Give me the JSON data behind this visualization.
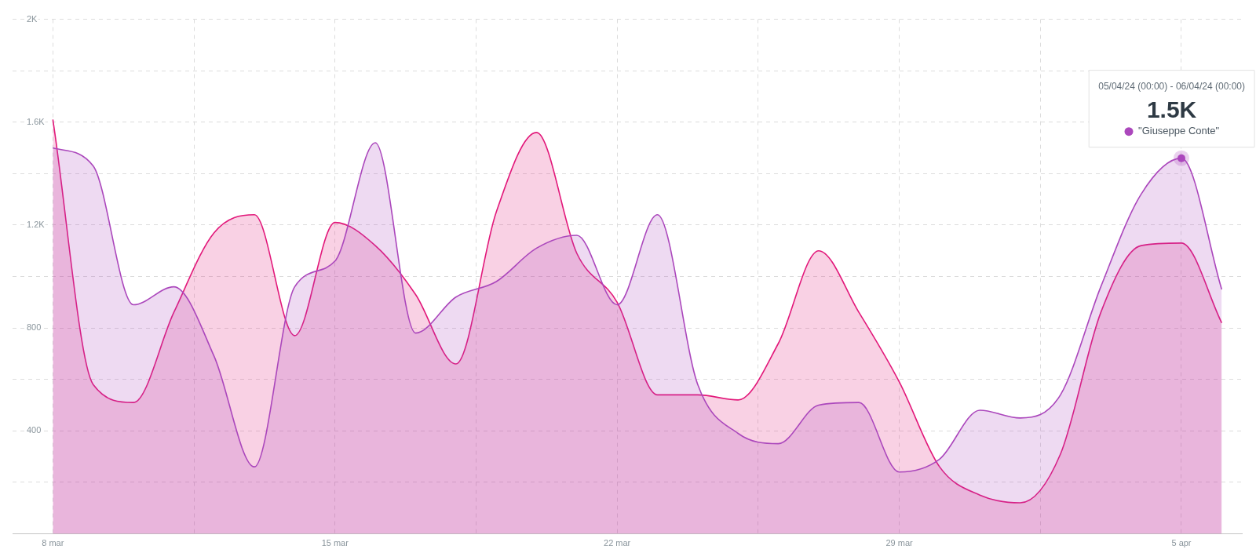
{
  "chart_data": {
    "type": "area",
    "x": [
      "--03-08",
      "--03-09",
      "--03-10",
      "--03-11",
      "--03-12",
      "--03-13",
      "--03-14",
      "--03-15",
      "--03-16",
      "--03-17",
      "--03-18",
      "--03-19",
      "--03-20",
      "--03-21",
      "--03-22",
      "--03-23",
      "--03-24",
      "--03-25",
      "--03-26",
      "--03-27",
      "--03-28",
      "--03-29",
      "--03-30",
      "--03-31",
      "--04-01",
      "--04-02",
      "--04-03",
      "--04-04",
      "--04-05",
      "--04-06"
    ],
    "series": [
      {
        "name": "\"Giuseppe Conte\"",
        "color": "#ab47bc",
        "values": [
          1500,
          1430,
          890,
          960,
          690,
          260,
          960,
          1060,
          1520,
          780,
          920,
          980,
          1110,
          1160,
          890,
          1240,
          580,
          390,
          350,
          500,
          510,
          240,
          290,
          480,
          450,
          540,
          960,
          1320,
          1460,
          950
        ]
      },
      {
        "color": "#e2187a",
        "values": [
          1610,
          580,
          510,
          860,
          1170,
          1240,
          770,
          1210,
          1120,
          930,
          660,
          1250,
          1560,
          1090,
          900,
          540,
          540,
          520,
          740,
          1100,
          860,
          590,
          260,
          150,
          120,
          310,
          860,
          1120,
          1130,
          820
        ]
      }
    ],
    "xlim": [
      "--03-07",
      "--04-06T12:00"
    ],
    "xticks": [
      {
        "value": "--03-08",
        "label": "8 mar"
      },
      {
        "value": "--03-11T12:00",
        "label": null
      },
      {
        "value": "--03-15",
        "label": "15 mar"
      },
      {
        "value": "--03-18T12:00",
        "label": null
      },
      {
        "value": "--03-22",
        "label": "22 mar"
      },
      {
        "value": "--03-25T12:00",
        "label": null
      },
      {
        "value": "--03-29",
        "label": "29 mar"
      },
      {
        "value": "--04-01T12:00",
        "label": null
      },
      {
        "value": "--04-05",
        "label": "5 apr"
      }
    ],
    "ylim": [
      0,
      2000
    ],
    "yticks": [
      {
        "value": 200,
        "label": null
      },
      400,
      {
        "value": 600,
        "label": null
      },
      800,
      {
        "value": 1000,
        "label": null
      },
      {
        "value": 1200,
        "label": "1.2K"
      },
      {
        "value": 1400,
        "label": null
      },
      {
        "value": 1600,
        "label": "1.6K"
      },
      {
        "value": 1800,
        "label": null
      },
      {
        "value": 2000,
        "label": "2K"
      }
    ],
    "grid": true,
    "legend": "top right",
    "annotations": [
      "05/04/24 (00:00) - 06/04/24 (00:00)",
      {
        "text": "1.5K",
        "x": "--04-05",
        "y": 1460
      }
    ]
  }
}
